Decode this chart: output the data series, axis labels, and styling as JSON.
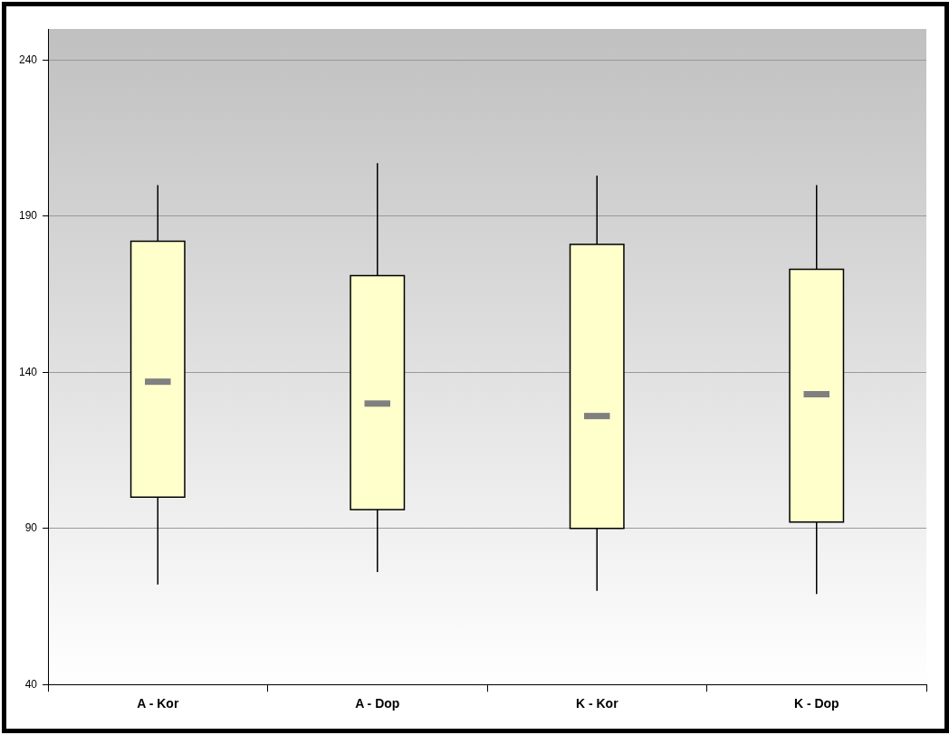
{
  "chart_data": {
    "type": "box",
    "categories": [
      "A - Kor",
      "A - Dop",
      "K - Kor",
      "K - Dop"
    ],
    "boxes": [
      {
        "low": 72,
        "q1": 100,
        "median": 137,
        "q3": 182,
        "high": 200
      },
      {
        "low": 76,
        "q1": 96,
        "median": 130,
        "q3": 171,
        "high": 207
      },
      {
        "low": 70,
        "q1": 90,
        "median": 126,
        "q3": 181,
        "high": 203
      },
      {
        "low": 69,
        "q1": 92,
        "median": 133,
        "q3": 173,
        "high": 200
      }
    ],
    "color": "#ffffcc",
    "ylim": [
      40,
      250
    ],
    "yticks": [
      40,
      90,
      140,
      190,
      240
    ],
    "grid": "y",
    "legend": false
  }
}
